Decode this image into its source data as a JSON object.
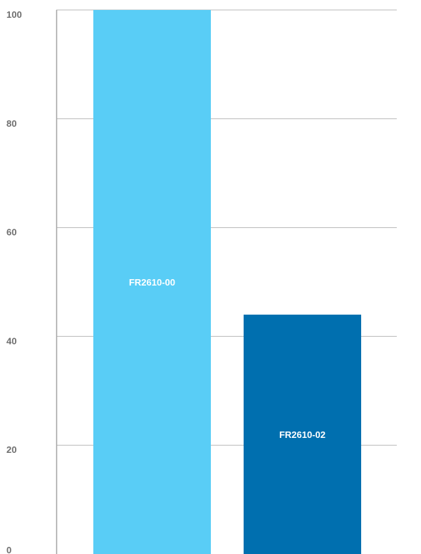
{
  "chart_data": {
    "type": "bar",
    "title": "",
    "xlabel": "",
    "ylabel": "",
    "categories": [
      "FR2610-00",
      "FR2610-02"
    ],
    "values": [
      100,
      44
    ],
    "ylim": [
      0,
      100
    ],
    "yticks": [
      0,
      20,
      40,
      60,
      80,
      100
    ],
    "grid": true,
    "legend": "none",
    "colors": {
      "FR2610-00": "#59cdf6",
      "FR2610-02": "#006faf",
      "grid": "#b8b8b8",
      "axis": "#a5a5a5",
      "tick_text": "#6f6f6f",
      "bar_text": "#ffffff"
    }
  }
}
